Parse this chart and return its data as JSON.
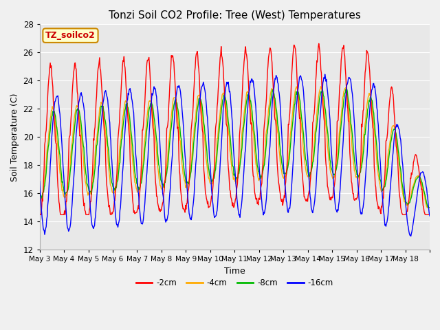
{
  "title": "Tonzi Soil CO2 Profile: Tree (West) Temperatures",
  "xlabel": "Time",
  "ylabel": "Soil Temperature (C)",
  "ylim": [
    12,
    28
  ],
  "yticks": [
    12,
    14,
    16,
    18,
    20,
    22,
    24,
    26,
    28
  ],
  "annotation_label": "TZ_soilco2",
  "annotation_color": "#cc0000",
  "annotation_bg": "#ffffcc",
  "annotation_border": "#cc8800",
  "legend_labels": [
    "-2cm",
    "-4cm",
    "-8cm",
    "-16cm"
  ],
  "legend_colors": [
    "#ff0000",
    "#ffaa00",
    "#00bb00",
    "#0000ff"
  ],
  "line_colors": [
    "#ff0000",
    "#ffaa00",
    "#00bb00",
    "#0000ff"
  ],
  "plot_bg_color": "#e8e8e8",
  "fig_bg_color": "#f0f0f0",
  "grid_color": "#ffffff",
  "xtick_labels": [
    "May 3",
    "May 4",
    "May 5",
    "May 6",
    "May 7",
    "May 8",
    "May 9",
    "May 10",
    "May 11",
    "May 12",
    "May 13",
    "May 14",
    "May 15",
    "May 16",
    "May 17",
    "May 18"
  ],
  "n_days": 16,
  "pts_per_day": 48
}
